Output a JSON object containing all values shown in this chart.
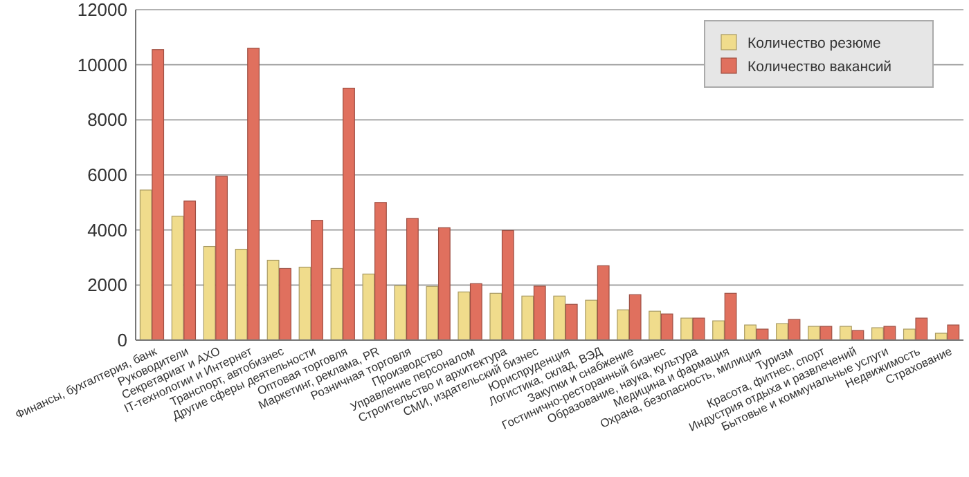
{
  "chart_data": {
    "type": "bar",
    "categories": [
      "Финансы, бухгалтерия, банк",
      "Руководители",
      "Секретариат и АХО",
      "IT-технологии и Интернет",
      "Транспорт, автобизнес",
      "Другие сферы деятельности",
      "Оптовая торговля",
      "Маркетинг, реклама, PR",
      "Розничная торговля",
      "Производство",
      "Управление персоналом",
      "Строительство и архитектура",
      "СМИ, издательский бизнес",
      "Юриспруденция",
      "Логистика, склад, ВЭД",
      "Закупки и снабжение",
      "Гостинично-ресторанный бизнес",
      "Образование, наука, культура",
      "Медицина и фармация",
      "Охрана, безопасность, милиция",
      "Туризм",
      "Красота, фитнес, спорт",
      "Индустрия отдыха и развлечений",
      "Бытовые и коммунальные услуги",
      "Недвижимость",
      "Страхование"
    ],
    "series": [
      {
        "name": "Количество резюме",
        "color": "#f0dc8c",
        "values": [
          5450,
          4500,
          3400,
          3300,
          2900,
          2650,
          2600,
          2400,
          1980,
          1950,
          1750,
          1700,
          1600,
          1600,
          1450,
          1100,
          1050,
          800,
          700,
          550,
          600,
          500,
          500,
          450,
          400,
          250
        ]
      },
      {
        "name": "Количество вакансий",
        "color": "#e0705e",
        "values": [
          10550,
          5050,
          5950,
          10600,
          2600,
          4350,
          9150,
          5000,
          4420,
          4080,
          2050,
          3980,
          1960,
          1300,
          2700,
          1650,
          950,
          800,
          1700,
          400,
          750,
          500,
          350,
          500,
          800,
          550
        ]
      }
    ],
    "ylim": [
      0,
      12000
    ],
    "yticks": [
      0,
      2000,
      4000,
      6000,
      8000,
      10000,
      12000
    ],
    "grid": "y",
    "legend": "top right"
  }
}
